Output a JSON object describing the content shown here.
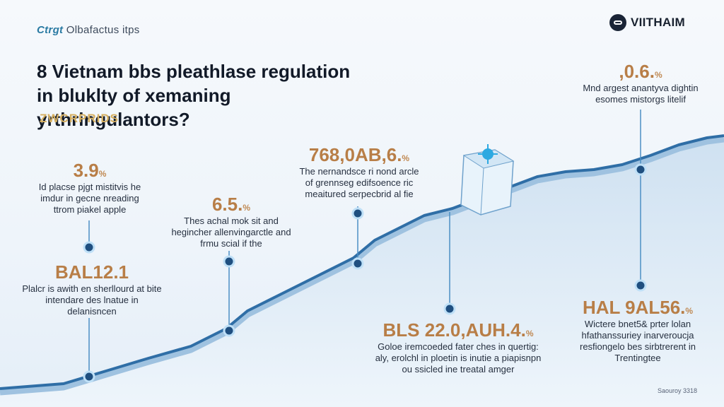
{
  "header": {
    "brand_mark": "Ctrgt",
    "brand_text": "Olbafactus itps",
    "logo_name": "VIITHAIM"
  },
  "title": "8 Vietnam bbs pleathlase regulation in bluklty of xemaning yrthringulantors?",
  "subtitle": "ZWCRPRIDS",
  "callouts": [
    {
      "stat": "3.9",
      "suffix": "%",
      "desc": "Id placse pjgt mistitvis he imdur in gecne nreading ttrom piakel apple"
    },
    {
      "stat": "BAL12.1",
      "suffix": "",
      "desc": "Plalcr is awith en sherllourd at bite intendare des lnatue in delanisncen"
    },
    {
      "stat": "6.5.",
      "suffix": "%",
      "desc": "Thes achal mok sit and hegincher allenvingarctle and frmu scial if the"
    },
    {
      "stat": "768,0AB,6.",
      "suffix": "%",
      "desc": "The nernandsce ri nond arcle of grennseg edifsoence ric meaitured serpecbrid al fie"
    },
    {
      "stat": "BLS 22.0,AUH.4.",
      "suffix": "%",
      "desc": "Goloe iremcoeded fater ches in quertig: aly, erolchl in ploetin is inutie a piapisnpn ou ssicled ine treatal amger"
    },
    {
      "stat": ",0.6.",
      "suffix": "%",
      "desc": "Mnd argest anantyva dightin esomes mistorgs litelif"
    },
    {
      "stat": "HAL 9AL56.",
      "suffix": "%",
      "desc": "Wictere bnet5& prter lolan hfathanssuriey inarveroucja resfiongelo bes sirbtrerent in Trentingtee"
    }
  ],
  "footer": "Saouroy 3318",
  "colors": {
    "accent_gold": "#b87e47",
    "line_blue": "#2f6ea6",
    "area_fill": "#d4e5f3"
  }
}
